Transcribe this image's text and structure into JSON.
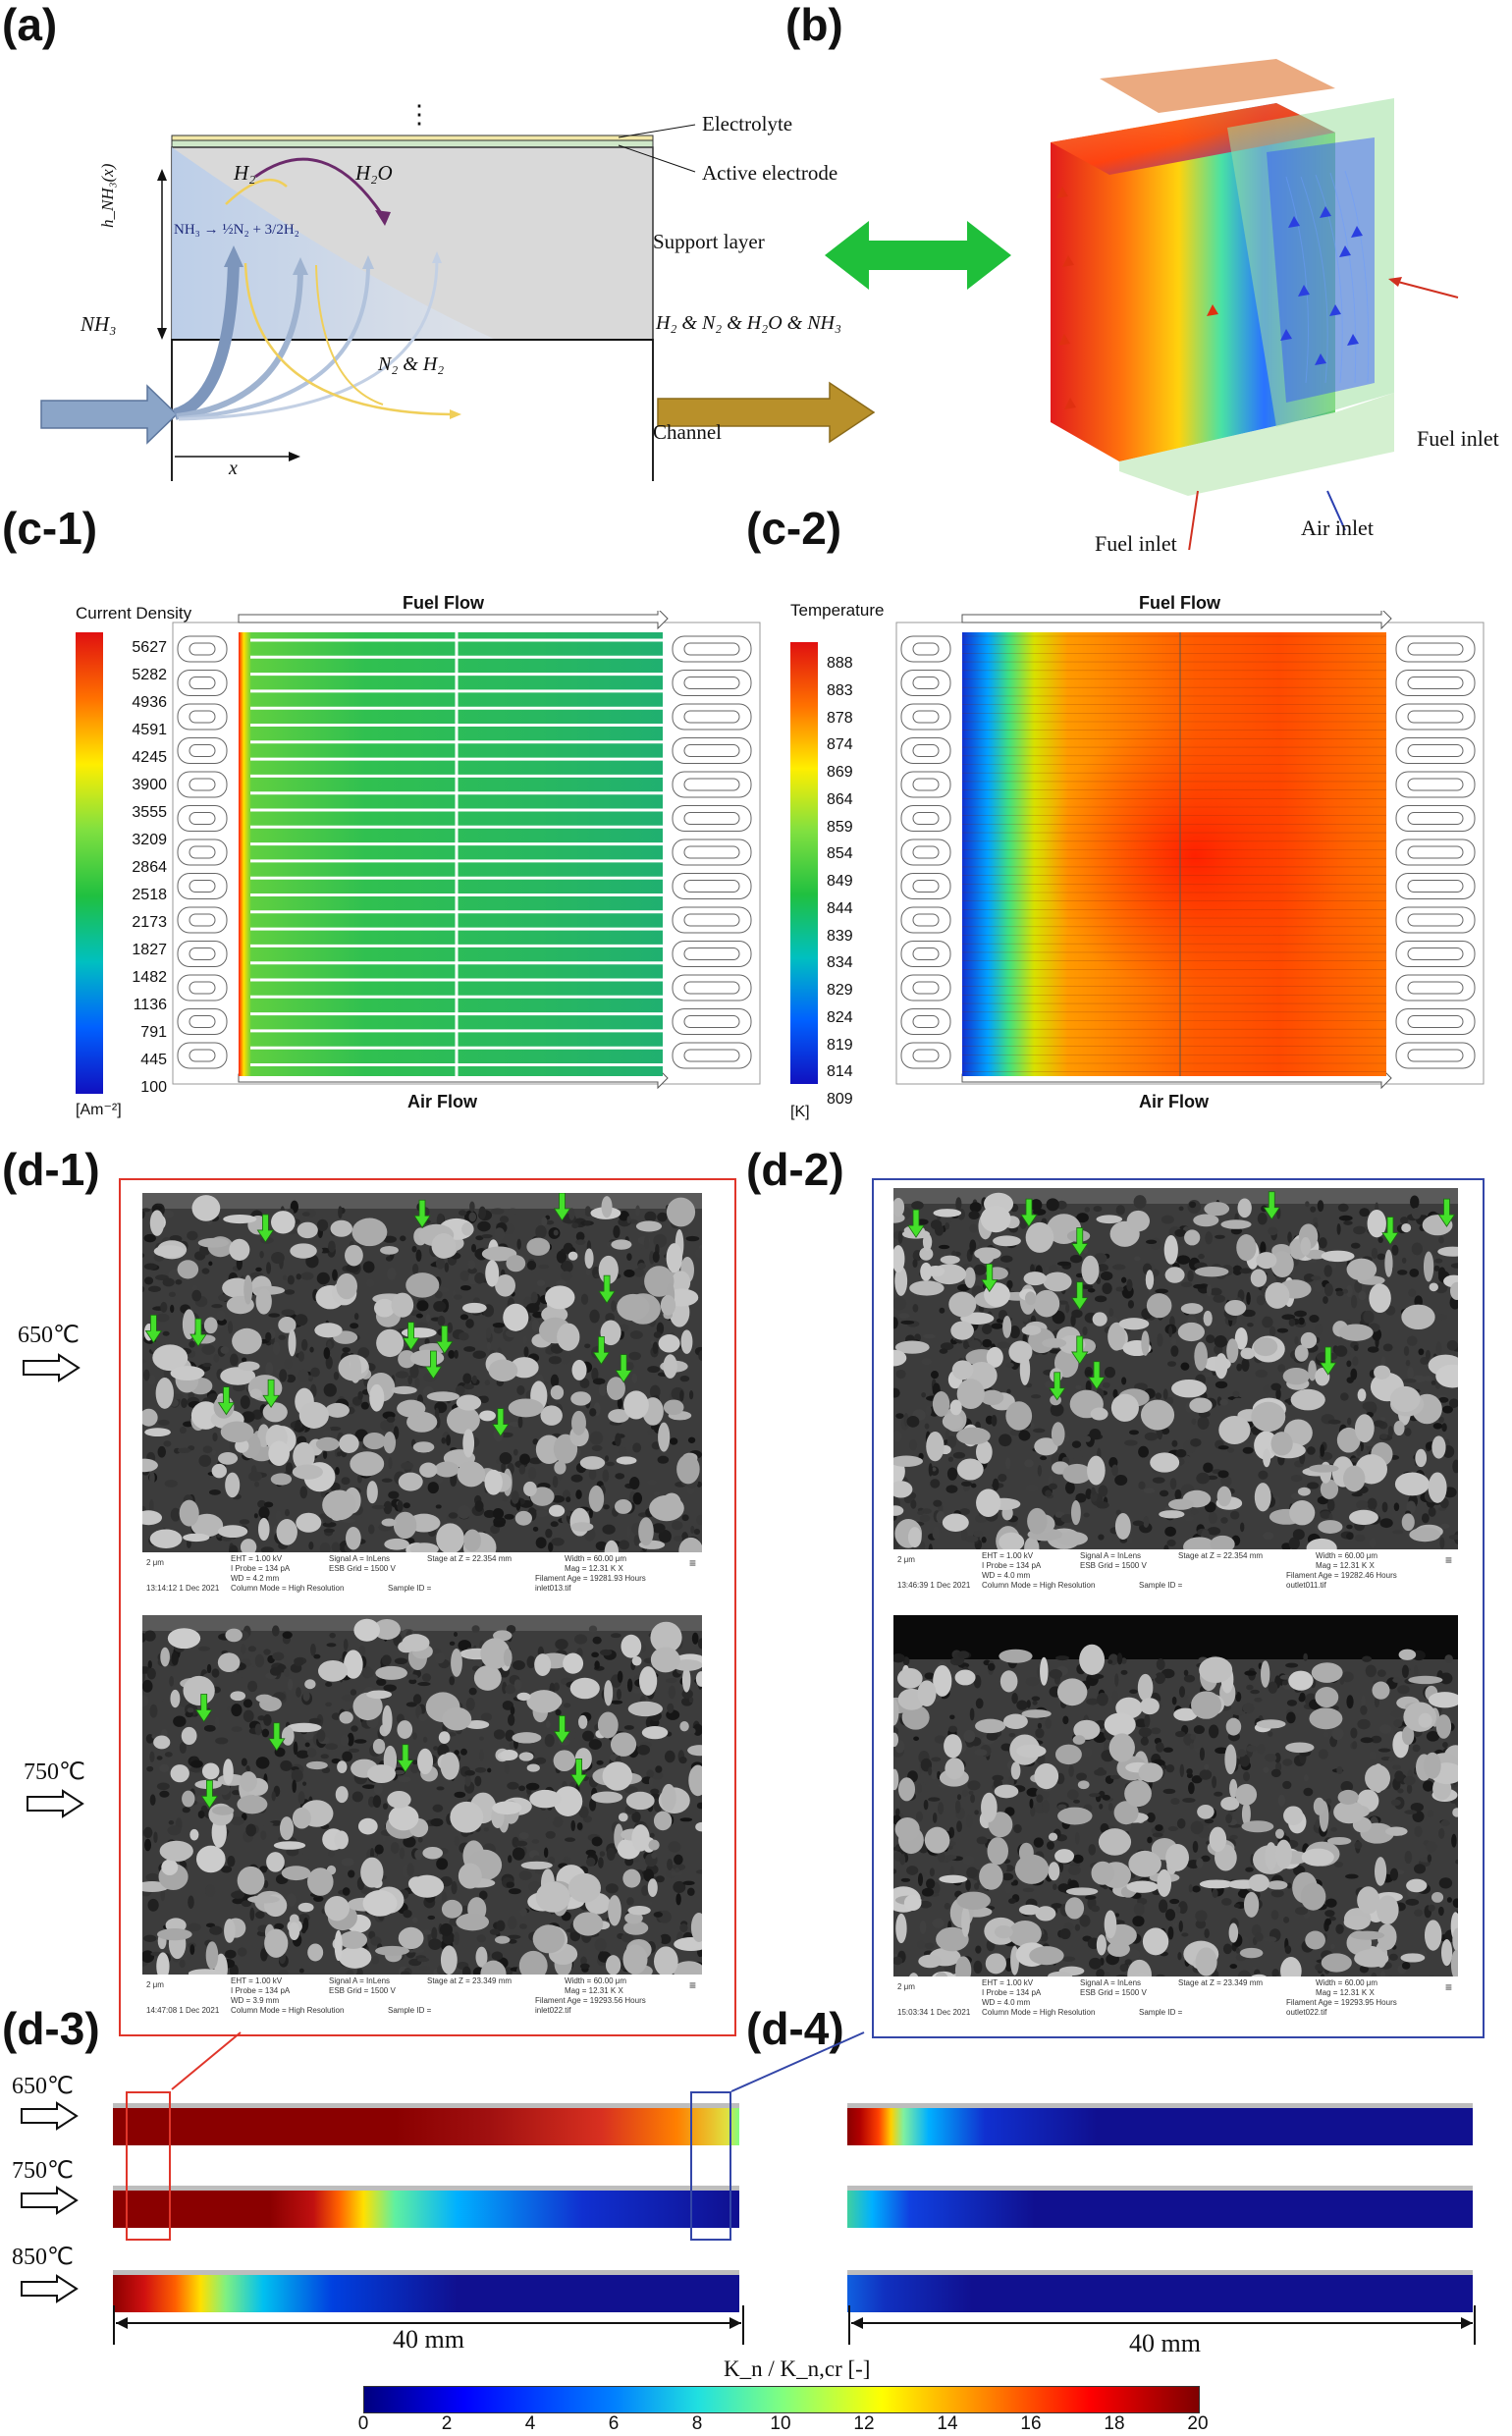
{
  "panels": {
    "a": "(a)",
    "b": "(b)",
    "c1": "(c-1)",
    "c2": "(c-2)",
    "d1": "(d-1)",
    "d2": "(d-2)",
    "d3": "(d-3)",
    "d4": "(d-4)"
  },
  "panel_a": {
    "dots": "⋮",
    "electrolyte": "Electrolyte",
    "active_electrode": "Active electrode",
    "support_layer": "Support layer",
    "channel": "Channel",
    "h2": "H₂",
    "h2o": "H₂O",
    "height_label": "h_NH₃(x)",
    "reaction": "NH₃ → ½N₂ + 3/2H₂",
    "inlet": "NH₃",
    "outlet": "H₂ & N₂ & H₂O & NH₃",
    "n2h2": "N₂ & H₂",
    "x": "x"
  },
  "panel_b": {
    "fuel_inlet_right": "Fuel inlet",
    "fuel_inlet_left": "Fuel inlet",
    "air_inlet": "Air inlet"
  },
  "panel_c1": {
    "title": "Current Density",
    "unit": "[Am⁻²]",
    "ticks": [
      "5627",
      "5282",
      "4936",
      "4591",
      "4245",
      "3900",
      "3555",
      "3209",
      "2864",
      "2518",
      "2173",
      "1827",
      "1482",
      "1136",
      "791",
      "445",
      "100"
    ],
    "fuel_flow": "Fuel Flow",
    "air_flow": "Air Flow"
  },
  "panel_c2": {
    "title": "Temperature",
    "unit": "[K]",
    "ticks": [
      "888",
      "883",
      "878",
      "874",
      "869",
      "864",
      "859",
      "854",
      "849",
      "844",
      "839",
      "834",
      "829",
      "824",
      "819",
      "814",
      "809"
    ],
    "fuel_flow": "Fuel Flow",
    "air_flow": "Air Flow"
  },
  "panel_d": {
    "t650": "650℃",
    "t750": "750℃",
    "t850": "850℃",
    "scale_left": "40 mm",
    "scale_right": "40 mm",
    "cb_title": "K_n / K_n,cr [-]",
    "cb_ticks": [
      "0",
      "2",
      "4",
      "6",
      "8",
      "10",
      "12",
      "14",
      "16",
      "18",
      "20"
    ],
    "sem_scale": "2 μm"
  },
  "sem_info": {
    "d1_top": {
      "eht": "EHT = 1.00 kV",
      "iprobe": "I Probe = 134 pA",
      "wd": "WD = 4.2 mm",
      "signal": "Signal A = InLens",
      "esb": "ESB Grid = 1500 V",
      "stage": "Stage at Z = 22.354 mm",
      "width": "Width = 60.00 μm",
      "mag": "Mag = 12.31 K X",
      "filament": "Filament Age = 19281.93 Hours",
      "time": "13:14:12  1 Dec 2021",
      "column": "Column Mode = High Resolution",
      "sample": "Sample ID =",
      "file": "inlet013.tif"
    },
    "d1_bot": {
      "eht": "EHT = 1.00 kV",
      "iprobe": "I Probe = 134 pA",
      "wd": "WD = 3.9 mm",
      "signal": "Signal A = InLens",
      "esb": "ESB Grid = 1500 V",
      "stage": "Stage at Z = 23.349 mm",
      "width": "Width = 60.00 μm",
      "mag": "Mag = 12.31 K X",
      "filament": "Filament Age = 19293.56 Hours",
      "time": "14:47:08  1 Dec 2021",
      "column": "Column Mode = High Resolution",
      "sample": "Sample ID =",
      "file": "inlet022.tif"
    },
    "d2_top": {
      "eht": "EHT = 1.00 kV",
      "iprobe": "I Probe = 134 pA",
      "wd": "WD = 4.0 mm",
      "signal": "Signal A = InLens",
      "esb": "ESB Grid = 1500 V",
      "stage": "Stage at Z = 22.354 mm",
      "width": "Width = 60.00 μm",
      "mag": "Mag = 12.31 K X",
      "filament": "Filament Age = 19282.46 Hours",
      "time": "13:46:39  1 Dec 2021",
      "column": "Column Mode = High Resolution",
      "sample": "Sample ID =",
      "file": "outlet011.tif"
    },
    "d2_bot": {
      "eht": "EHT = 1.00 kV",
      "iprobe": "I Probe = 134 pA",
      "wd": "WD = 4.0 mm",
      "signal": "Signal A = InLens",
      "esb": "ESB Grid = 1500 V",
      "stage": "Stage at Z = 23.349 mm",
      "width": "Width = 60.00 μm",
      "mag": "Mag = 12.31 K X",
      "filament": "Filament Age = 19293.95 Hours",
      "time": "15:03:34  1 Dec 2021",
      "column": "Column Mode = High Resolution",
      "sample": "Sample ID =",
      "file": "outlet022.tif"
    }
  },
  "colors": {
    "jet": [
      "#00007f",
      "#0000ff",
      "#007fff",
      "#00ffff",
      "#7fff7f",
      "#ffff00",
      "#ff7f00",
      "#ff0000",
      "#7f0000"
    ],
    "arrow_green": "#44e02a",
    "d1_frame": "#e0352a",
    "d2_frame": "#3346a8",
    "nh3_arrow": "#8ba5c8",
    "out_arrow": "#b8902a",
    "n2h2_line": "#f0cf5a",
    "h2o_line": "#6b2a6b"
  }
}
